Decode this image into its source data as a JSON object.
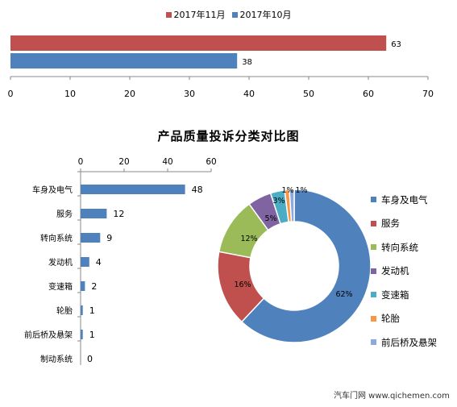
{
  "chart_data": [
    {
      "type": "bar",
      "orientation": "horizontal",
      "series": [
        {
          "name": "2017年11月",
          "values": [
            63
          ],
          "color": "#C0504D"
        },
        {
          "name": "2017年10月",
          "values": [
            38
          ],
          "color": "#4F81BD"
        }
      ],
      "xlim": [
        0,
        70
      ],
      "xticks": [
        "0",
        "10",
        "20",
        "30",
        "40",
        "50",
        "60",
        "70"
      ],
      "legend_position": "top",
      "grid": false
    },
    {
      "type": "bar",
      "orientation": "horizontal",
      "title": "产品质量投诉分类对比图",
      "categories": [
        "车身及电气",
        "服务",
        "转向系统",
        "发动机",
        "变速箱",
        "轮胎",
        "前后桥及悬架",
        "制动系统"
      ],
      "values": [
        48,
        12,
        9,
        4,
        2,
        1,
        1,
        0
      ],
      "xlim": [
        0,
        60
      ],
      "xticks": [
        "0",
        "20",
        "40",
        "60"
      ],
      "color": "#4F81BD",
      "axis_position": "top",
      "grid": false
    },
    {
      "type": "pie",
      "donut": true,
      "categories": [
        "车身及电气",
        "服务",
        "转向系统",
        "发动机",
        "变速箱",
        "轮胎",
        "前后桥及悬架"
      ],
      "values": [
        62,
        16,
        12,
        5,
        3,
        1,
        1
      ],
      "labels": [
        "62%",
        "16%",
        "12%",
        "5%",
        "3%",
        "1%",
        "1%"
      ],
      "colors": [
        "#4F81BD",
        "#C0504D",
        "#9BBB59",
        "#8064A2",
        "#4BACC6",
        "#F79646",
        "#8EA9DB"
      ],
      "legend_position": "right"
    }
  ],
  "watermark": "汽车门网 www.qichemen.com"
}
